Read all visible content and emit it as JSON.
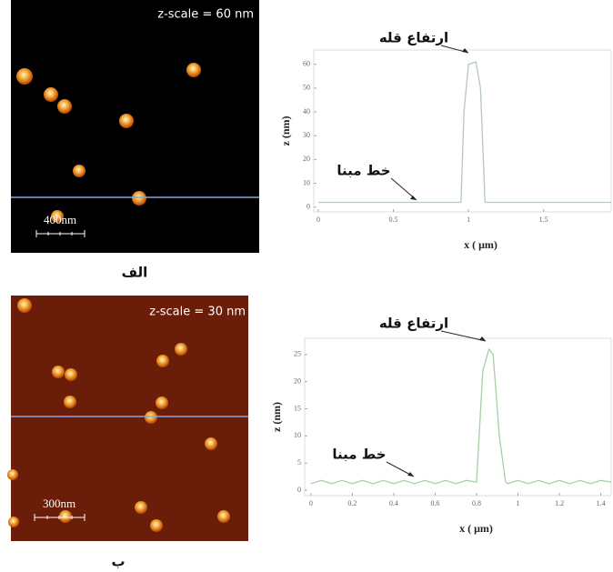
{
  "images": [
    {
      "scale_text": "z-scale = 60 nm",
      "bar_text": "400nm",
      "panel_label": "الف"
    },
    {
      "scale_text": "z-scale = 30 nm",
      "bar_text": "300nm",
      "panel_label": "ب"
    }
  ],
  "chart_data": [
    {
      "type": "line",
      "xlabel": "x ( μm)",
      "ylabel": "z (nm)",
      "color": "#b8c8b8",
      "x": [
        0,
        0.1,
        0.2,
        0.3,
        0.4,
        0.5,
        0.6,
        0.7,
        0.8,
        0.9,
        0.95,
        0.97,
        1.0,
        1.05,
        1.08,
        1.11,
        1.15,
        1.2,
        1.3,
        1.4,
        1.5,
        1.6,
        1.7,
        1.8,
        1.95
      ],
      "values": [
        2,
        2,
        2,
        2,
        2,
        2,
        2,
        2,
        2,
        2,
        2,
        40,
        60,
        61,
        50,
        2,
        2,
        2,
        2,
        2,
        2,
        2,
        2,
        2,
        2
      ],
      "xlim": [
        -0.03,
        1.95
      ],
      "ylim": [
        -2,
        66
      ],
      "xticks": [
        0,
        0.5,
        1,
        1.5
      ],
      "yticks": [
        0,
        10,
        20,
        30,
        40,
        50,
        60
      ],
      "annotations": [
        "ارتفاع قله",
        "خط مبنا"
      ]
    },
    {
      "type": "line",
      "xlabel": "x ( μm)",
      "ylabel": "z (nm)",
      "color": "#a8d0a8",
      "x": [
        0,
        0.05,
        0.1,
        0.15,
        0.2,
        0.25,
        0.3,
        0.35,
        0.4,
        0.45,
        0.5,
        0.55,
        0.6,
        0.65,
        0.7,
        0.75,
        0.8,
        0.83,
        0.86,
        0.88,
        0.91,
        0.94,
        0.95,
        1.0,
        1.05,
        1.1,
        1.15,
        1.2,
        1.25,
        1.3,
        1.35,
        1.4,
        1.45
      ],
      "values": [
        1.2,
        1.8,
        1.2,
        1.8,
        1.2,
        1.8,
        1.2,
        1.8,
        1.2,
        1.8,
        1.2,
        1.8,
        1.2,
        1.8,
        1.2,
        1.8,
        1.5,
        22,
        26,
        25,
        10,
        1.5,
        1.2,
        1.8,
        1.2,
        1.8,
        1.2,
        1.8,
        1.2,
        1.8,
        1.2,
        1.8,
        1.5
      ],
      "xlim": [
        -0.03,
        1.45
      ],
      "ylim": [
        -1,
        28
      ],
      "xticks": [
        0,
        0.2,
        0.4,
        0.6,
        0.8,
        1,
        1.2,
        1.4
      ],
      "yticks": [
        0,
        5,
        10,
        15,
        20,
        25
      ],
      "annotations": [
        "ارتفاع قله",
        "خط مبنا"
      ]
    }
  ]
}
